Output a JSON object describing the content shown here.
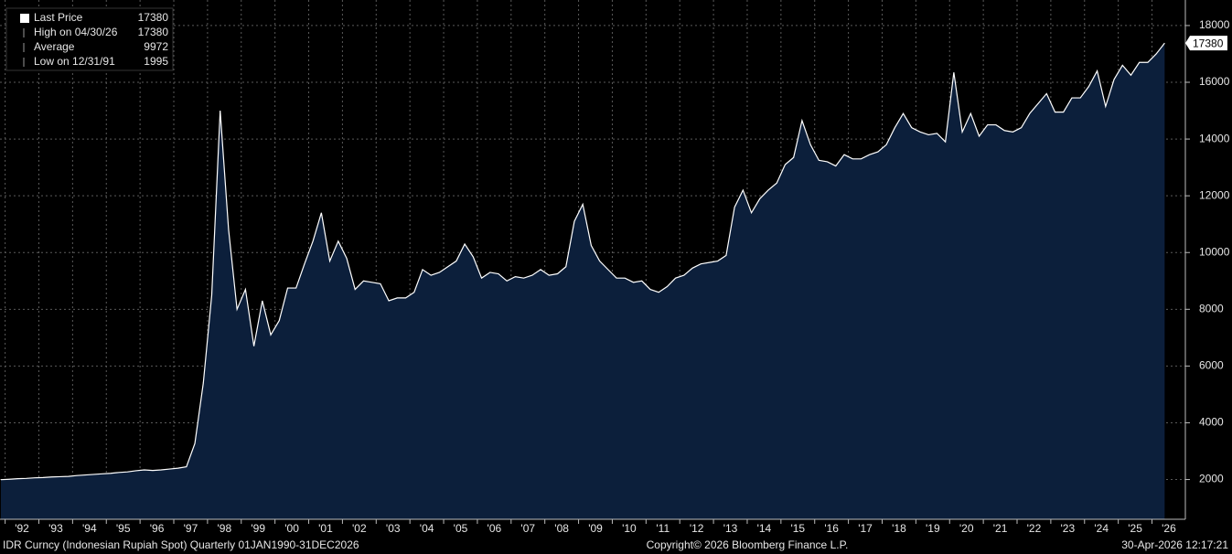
{
  "chart_data": {
    "type": "area",
    "legend": [
      {
        "name": "Last Price",
        "value": "17380"
      },
      {
        "name": "High on 04/30/26",
        "value": "17380"
      },
      {
        "name": "Average",
        "value": "9972"
      },
      {
        "name": "Low on 12/31/91",
        "value": "1995"
      }
    ],
    "footer_left": "IDR Curncy (Indonesian Rupiah Spot) Quarterly 01JAN1990-31DEC2026",
    "footer_center": "Copyright© 2026 Bloomberg Finance L.P.",
    "footer_right": "30-Apr-2026 12:17:21",
    "color": "#ffffff",
    "fill": "#0c1f3b",
    "grid": true,
    "ylim": [
      600,
      18900
    ],
    "yticks": [
      2000,
      4000,
      6000,
      8000,
      10000,
      12000,
      14000,
      16000,
      18000
    ],
    "categories": [
      null,
      null,
      "'92",
      null,
      null,
      null,
      "'93",
      null,
      null,
      null,
      "'94",
      null,
      null,
      null,
      "'95",
      null,
      null,
      null,
      "'96",
      null,
      null,
      null,
      "'97",
      null,
      null,
      null,
      "'98",
      null,
      null,
      null,
      "'99",
      null,
      null,
      null,
      "'00",
      null,
      null,
      null,
      "'01",
      null,
      null,
      null,
      "'02",
      null,
      null,
      null,
      "'03",
      null,
      null,
      null,
      "'04",
      null,
      null,
      null,
      "'05",
      null,
      null,
      null,
      "'06",
      null,
      null,
      null,
      "'07",
      null,
      null,
      null,
      "'08",
      null,
      null,
      null,
      "'09",
      null,
      null,
      null,
      "'10",
      null,
      null,
      null,
      "'11",
      null,
      null,
      null,
      "'12",
      null,
      null,
      null,
      "'13",
      null,
      null,
      null,
      "'14",
      null,
      null,
      null,
      "'15",
      null,
      null,
      null,
      "'16",
      null,
      null,
      null,
      "'17",
      null,
      null,
      null,
      "'18",
      null,
      null,
      null,
      "'19",
      null,
      null,
      null,
      "'20",
      null,
      null,
      null,
      "'21",
      null,
      null,
      null,
      "'22",
      null,
      null,
      null,
      "'23",
      null,
      null,
      null,
      "'24",
      null,
      null,
      null,
      "'25",
      null,
      null,
      null,
      "'26"
    ],
    "values": [
      1995,
      2010,
      2030,
      2040,
      2060,
      2070,
      2090,
      2100,
      2110,
      2140,
      2160,
      2180,
      2200,
      2220,
      2250,
      2270,
      2310,
      2340,
      2320,
      2340,
      2370,
      2400,
      2450,
      3270,
      5400,
      8500,
      15000,
      10800,
      8000,
      8700,
      6700,
      8300,
      7100,
      7600,
      8750,
      8750,
      9600,
      10400,
      11400,
      9700,
      10400,
      9800,
      8700,
      9000,
      8950,
      8900,
      8300,
      8400,
      8400,
      8600,
      9400,
      9200,
      9300,
      9500,
      9700,
      10300,
      9850,
      9100,
      9300,
      9250,
      9000,
      9150,
      9100,
      9200,
      9400,
      9200,
      9250,
      9500,
      11100,
      11700,
      10250,
      9700,
      9400,
      9100,
      9100,
      8950,
      9000,
      8700,
      8600,
      8800,
      9100,
      9200,
      9450,
      9600,
      9650,
      9700,
      9900,
      11600,
      12200,
      11400,
      11900,
      12200,
      12450,
      13100,
      13350,
      14650,
      13800,
      13250,
      13200,
      13050,
      13450,
      13300,
      13300,
      13450,
      13550,
      13800,
      14400,
      14900,
      14400,
      14250,
      14150,
      14200,
      13900,
      16350,
      14250,
      14900,
      14100,
      14500,
      14500,
      14300,
      14250,
      14400,
      14900,
      15250,
      15600,
      14950,
      14950,
      15450,
      15450,
      15850,
      16400,
      15150,
      16100,
      16600,
      16250,
      16700,
      16700,
      17000,
      17380
    ]
  }
}
